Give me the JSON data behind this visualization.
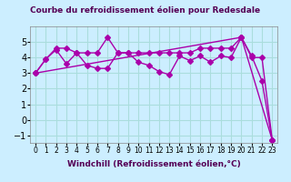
{
  "title": "Courbe du refroidissement éolien pour Redesdale",
  "xlabel": "Windchill (Refroidissement éolien,°C)",
  "x": [
    0,
    1,
    2,
    3,
    4,
    5,
    6,
    7,
    8,
    9,
    10,
    11,
    12,
    13,
    14,
    15,
    16,
    17,
    18,
    19,
    20,
    21,
    22,
    23
  ],
  "line1": [
    3.0,
    3.9,
    4.5,
    3.6,
    4.3,
    3.5,
    3.3,
    3.3,
    4.3,
    4.3,
    3.7,
    3.5,
    3.1,
    2.9,
    4.1,
    3.8,
    4.1,
    3.7,
    4.1,
    4.0,
    5.3,
    4.1,
    2.5,
    -1.3
  ],
  "line2": [
    3.0,
    3.9,
    4.6,
    4.6,
    4.3,
    4.3,
    4.3,
    5.3,
    4.3,
    4.3,
    4.3,
    4.3,
    4.3,
    4.3,
    4.3,
    4.3,
    4.6,
    4.6,
    4.6,
    4.6,
    5.3,
    4.0,
    4.0,
    -1.3
  ],
  "line3": [
    3.0,
    null,
    null,
    null,
    null,
    null,
    null,
    null,
    null,
    null,
    null,
    null,
    null,
    null,
    null,
    null,
    null,
    null,
    null,
    null,
    5.3,
    null,
    null,
    -1.3
  ],
  "bg_color": "#cceeff",
  "line_color": "#aa00aa",
  "grid_color": "#aadddd",
  "ylim": [
    -1.5,
    6.0
  ],
  "yticks": [
    -1,
    0,
    1,
    2,
    3,
    4,
    5
  ],
  "xlim": [
    -0.5,
    23.5
  ]
}
